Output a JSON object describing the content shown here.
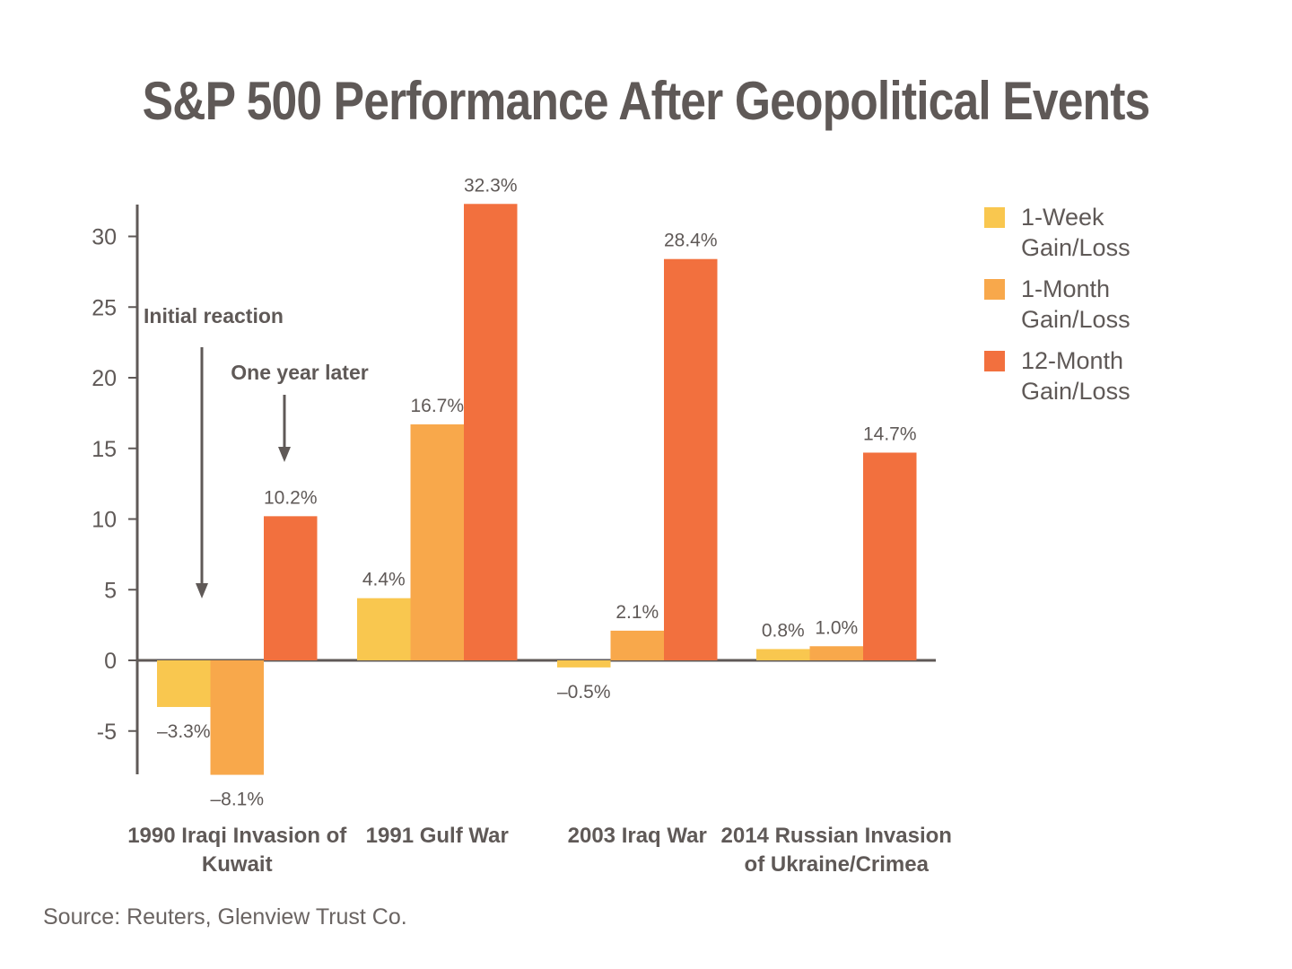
{
  "chart_data": {
    "type": "bar",
    "title": "S&P 500 Performance After Geopolitical Events",
    "categories": [
      [
        "1990 Iraqi Invasion of",
        "Kuwait"
      ],
      [
        "1991 Gulf War"
      ],
      [
        "2003 Iraq War"
      ],
      [
        "2014 Russian Invasion",
        "of Ukraine/Crimea"
      ]
    ],
    "series": [
      {
        "name": "1-Week Gain/Loss",
        "values": [
          -3.3,
          4.4,
          -0.5,
          0.8
        ],
        "labels": [
          "–3.3%",
          "4.4%",
          "–0.5%",
          "0.8%"
        ],
        "color": "#f9c74f"
      },
      {
        "name": "1-Month Gain/Loss",
        "values": [
          -8.1,
          16.7,
          2.1,
          1.0
        ],
        "labels": [
          "–8.1%",
          "16.7%",
          "2.1%",
          "1.0%"
        ],
        "color": "#f8a84b"
      },
      {
        "name": "12-Month Gain/Loss",
        "values": [
          10.2,
          32.3,
          28.4,
          14.7
        ],
        "labels": [
          "10.2%",
          "32.3%",
          "28.4%",
          "14.7%"
        ],
        "color": "#f2703e"
      }
    ],
    "yticks": [
      30,
      25,
      20,
      15,
      10,
      5,
      0,
      -5
    ],
    "ytick_labels": [
      "30",
      "25",
      "20",
      "15",
      "10",
      "5",
      "0",
      "-5"
    ],
    "ylim": [
      -8.1,
      32.3
    ],
    "xlabel": "",
    "ylabel": "",
    "legend_position": "top-right",
    "annotations": [
      {
        "text": "Initial reaction",
        "points_to": "1990 1-Week"
      },
      {
        "text": "One year later",
        "points_to": "1990 12-Month"
      }
    ]
  },
  "source": "Source: Reuters, Glenview Trust Co."
}
